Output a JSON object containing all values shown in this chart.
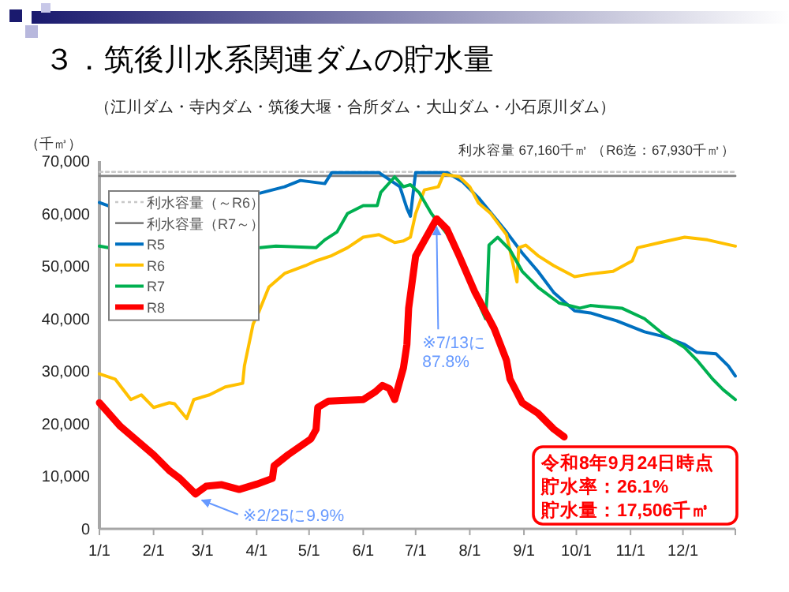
{
  "chart_data": {
    "type": "line",
    "title": "３．筑後川水系関連ダムの貯水量",
    "subtitle": "（江川ダム・寺内ダム・筑後大堰・合所ダム・大山ダム・小石原川ダム）",
    "ylabel": "（千㎥）",
    "xlim": [
      "--01-01",
      "--12-31"
    ],
    "xticks": [
      {
        "value": "--01-01",
        "label": "1/1"
      },
      {
        "value": "--02-01",
        "label": "2/1"
      },
      {
        "value": "--03-01",
        "label": "3/1"
      },
      {
        "value": "--04-01",
        "label": "4/1"
      },
      {
        "value": "--05-01",
        "label": "5/1"
      },
      {
        "value": "--06-01",
        "label": "6/1"
      },
      {
        "value": "--07-01",
        "label": "7/1"
      },
      {
        "value": "--08-01",
        "label": "8/1"
      },
      {
        "value": "--09-01",
        "label": "9/1"
      },
      {
        "value": "--10-01",
        "label": "10/1"
      },
      {
        "value": "--11-01",
        "label": "11/1"
      },
      {
        "value": "--12-01",
        "label": "12/1"
      },
      {
        "value": "--12-31",
        "label": null
      }
    ],
    "ylim": [
      0,
      70000
    ],
    "yticks": [
      0,
      {
        "value": 10000,
        "label": "10,000"
      },
      {
        "value": 20000,
        "label": "20,000"
      },
      {
        "value": 30000,
        "label": "30,000"
      },
      {
        "value": 40000,
        "label": "40,000"
      },
      {
        "value": 50000,
        "label": "50,000"
      },
      {
        "value": 60000,
        "label": "60,000"
      },
      {
        "value": 70000,
        "label": "70,000"
      }
    ],
    "grid": false,
    "legend": "top left",
    "marker": "none",
    "series": [
      {
        "name": "利水容量（～R6）",
        "color": "#c8c8c8",
        "line_style": "dotted",
        "x": [
          "--01-01",
          "--12-31"
        ],
        "values": [
          67930,
          67930
        ]
      },
      {
        "name": "利水容量（R7～）",
        "color": "#808080",
        "line_style": "solid",
        "x": [
          "--01-01",
          "--12-31"
        ],
        "values": [
          67160,
          67160
        ]
      },
      {
        "name": "R5",
        "color": "#0070c0",
        "x": [
          "--01-01",
          "--01-06",
          "--01-20",
          "--04-03",
          "--04-17",
          "--04-26",
          "--05-10",
          "--05-14",
          "--06-10",
          "--06-22",
          "--06-26",
          "--06-28",
          "--06-30",
          "--07-01",
          "--07-19",
          "--07-28",
          "--08-06",
          "--08-11",
          "--08-22",
          "--08-31",
          "--09-09",
          "--09-18",
          "--09-30",
          "--10-09",
          "--10-24",
          "--11-09",
          "--11-20",
          "--12-02",
          "--12-09",
          "--12-20",
          "--12-27",
          "--12-31"
        ],
        "values": [
          62100,
          61500,
          null,
          63900,
          65100,
          66300,
          65700,
          67800,
          67800,
          65100,
          61000,
          59500,
          65100,
          67800,
          67800,
          66000,
          63000,
          61000,
          56500,
          52500,
          49000,
          45000,
          41500,
          41100,
          39600,
          37500,
          36600,
          35100,
          33600,
          33300,
          31000,
          29100
        ]
      },
      {
        "name": "R6",
        "color": "#ffc000",
        "x": [
          "--01-01",
          "--01-10",
          "--01-19",
          "--01-25",
          "--02-01",
          "--02-10",
          "--02-13",
          "--02-20",
          "--02-24",
          "--03-05",
          "--03-14",
          "--03-24",
          "--03-25",
          "--03-30",
          "--04-02",
          "--04-08",
          "--04-17",
          "--04-29",
          "--05-05",
          "--05-14",
          "--05-23",
          "--06-01",
          "--06-10",
          "--06-19",
          "--06-24",
          "--06-28",
          "--07-01",
          "--07-06",
          "--07-14",
          "--07-17",
          "--07-26",
          "--08-01",
          "--08-06",
          "--08-13",
          "--08-22",
          "--08-28",
          "--08-29",
          "--09-02",
          "--09-09",
          "--09-18",
          "--09-30",
          "--10-09",
          "--10-22",
          "--11-02",
          "--11-05",
          "--11-18",
          "--12-02",
          "--12-15",
          "--12-31"
        ],
        "values": [
          29500,
          28500,
          24600,
          25500,
          23100,
          24000,
          23800,
          21000,
          24600,
          25500,
          27000,
          27700,
          31000,
          39000,
          41100,
          46000,
          48600,
          50100,
          51000,
          52000,
          53500,
          55500,
          56000,
          54500,
          54800,
          55500,
          60000,
          64500,
          65100,
          67500,
          67000,
          65100,
          62000,
          60000,
          56000,
          47000,
          53500,
          54000,
          52000,
          50100,
          48000,
          48500,
          49000,
          51000,
          53500,
          54500,
          55500,
          55000,
          53800
        ]
      },
      {
        "name": "R7",
        "color": "#00b050",
        "x": [
          "--01-01",
          "--01-06",
          "--01-20",
          "--04-03",
          "--04-12",
          "--05-05",
          "--05-10",
          "--05-17",
          "--05-23",
          "--06-01",
          "--06-09",
          "--06-11",
          "--06-15",
          "--06-19",
          "--06-24",
          "--06-28",
          "--07-03",
          "--07-10",
          "--07-19",
          "--07-28",
          "--08-06",
          "--08-10",
          "--08-11",
          "--08-12",
          "--08-17",
          "--08-24",
          "--08-31",
          "--09-09",
          "--09-21",
          "--10-03",
          "--10-09",
          "--10-27",
          "--11-09",
          "--11-20",
          "--12-02",
          "--12-09",
          "--12-18",
          "--12-24",
          "--12-31"
        ],
        "values": [
          53800,
          53500,
          null,
          53500,
          53800,
          53500,
          55000,
          56500,
          60000,
          61500,
          61500,
          64000,
          65500,
          67000,
          65100,
          65500,
          64000,
          60000,
          56100,
          50100,
          43000,
          40000,
          45000,
          54000,
          55500,
          53100,
          49000,
          46000,
          43000,
          42000,
          42500,
          42000,
          40000,
          37000,
          34500,
          32100,
          28500,
          26500,
          24600
        ]
      },
      {
        "name": "R8",
        "color": "#ff0000",
        "x": [
          "--01-01",
          "--01-13",
          "--02-01",
          "--02-10",
          "--02-16",
          "--02-25",
          "--03-03",
          "--03-12",
          "--03-22",
          "--04-01",
          "--04-10",
          "--04-11",
          "--04-19",
          "--05-02",
          "--05-05",
          "--05-06",
          "--05-12",
          "--06-01",
          "--06-08",
          "--06-12",
          "--06-16",
          "--06-19",
          "--06-24",
          "--06-26",
          "--06-27",
          "--07-01",
          "--07-13",
          "--07-19",
          "--07-26",
          "--08-04",
          "--08-15",
          "--08-22",
          "--08-24",
          "--08-31",
          "--09-09",
          "--09-18",
          "--09-24"
        ],
        "values": [
          24000,
          19500,
          14100,
          11100,
          9600,
          6650,
          8100,
          8400,
          7500,
          8500,
          9600,
          12000,
          14100,
          17100,
          18900,
          23100,
          24300,
          24600,
          26100,
          27300,
          26700,
          24600,
          30600,
          35100,
          42000,
          51900,
          59000,
          57000,
          51900,
          45000,
          38100,
          32100,
          28500,
          24000,
          22000,
          19000,
          17506
        ]
      }
    ],
    "annotations": [
      "利水容量 67,160千㎥ （R6迄：67,930千㎥）",
      "令和8年9月24日時点",
      "貯水率：26.1%",
      "貯水量：17,506千㎥",
      {
        "text": "※7/13に87.8%",
        "x": "--07-13",
        "y": 59000
      },
      {
        "text": "※2/25に9.9%",
        "x": "--02-25",
        "y": 6650
      }
    ]
  }
}
